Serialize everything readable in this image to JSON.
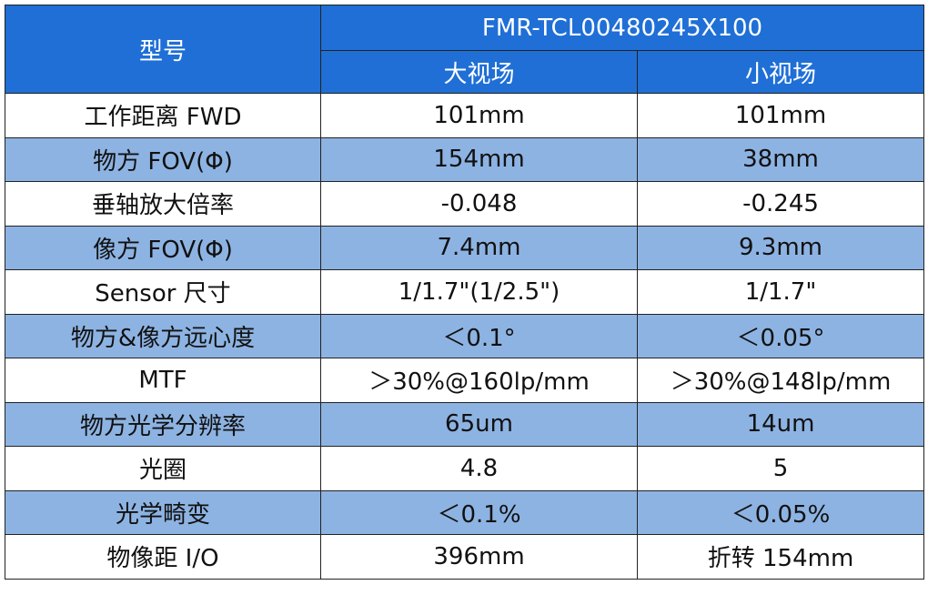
{
  "header": {
    "title": "型号",
    "group": "FMR-TCL00480245X100",
    "columns": [
      "大视场",
      "小视场"
    ]
  },
  "table": {
    "rows": [
      [
        "工作距离 FWD",
        "101mm",
        "101mm"
      ],
      [
        "物方 FOV(Φ)",
        "154mm",
        "38mm"
      ],
      [
        "垂轴放大倍率",
        "-0.048",
        "-0.245"
      ],
      [
        "像方 FOV(Φ)",
        "7.4mm",
        "9.3mm"
      ],
      [
        "Sensor 尺寸",
        "1/1.7\"(1/2.5\")",
        "1/1.7\""
      ],
      [
        "物方&像方远心度",
        "＜0.1°",
        "＜0.05°"
      ],
      [
        "MTF",
        "＞30%@160lp/mm",
        "＞30%@148lp/mm"
      ],
      [
        "物方光学分辨率",
        "65um",
        "14um"
      ],
      [
        "光圈",
        "4.8",
        "5"
      ],
      [
        "光学畸变",
        "＜0.1%",
        "＜0.05%"
      ],
      [
        "物像距 I/O",
        "396mm",
        "折转 154mm"
      ]
    ]
  }
}
